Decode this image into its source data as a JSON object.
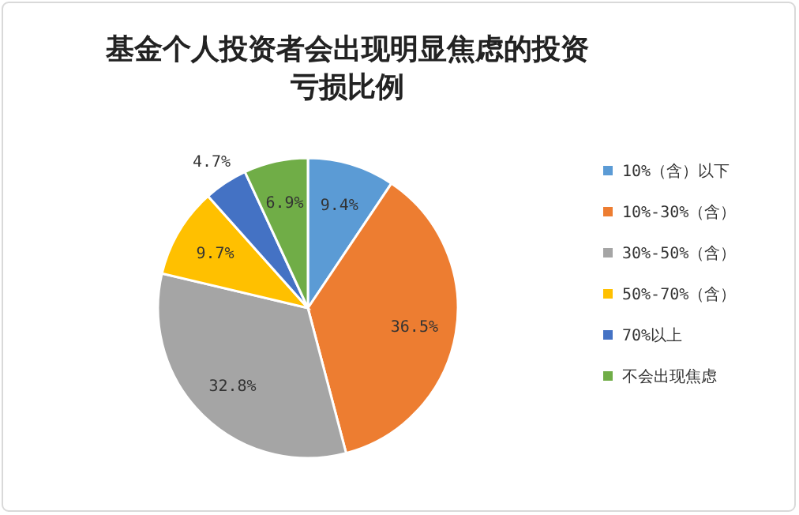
{
  "chart_data": {
    "type": "pie",
    "title": "基金个人投资者会出现明显焦虑的投资亏损比例",
    "categories": [
      "10%（含）以下",
      "10%-30%（含）",
      "30%-50%（含）",
      "50%-70%（含）",
      "70%以上",
      "不会出现焦虑"
    ],
    "values": [
      9.4,
      36.5,
      32.8,
      9.7,
      4.7,
      6.9
    ],
    "colors": [
      "#5b9bd5",
      "#ed7d31",
      "#a5a5a5",
      "#ffc000",
      "#4472c4",
      "#70ad47"
    ],
    "value_labels": [
      "9.4%",
      "36.5%",
      "32.8%",
      "9.7%",
      "4.7%",
      "6.9%"
    ],
    "legend": "right"
  }
}
